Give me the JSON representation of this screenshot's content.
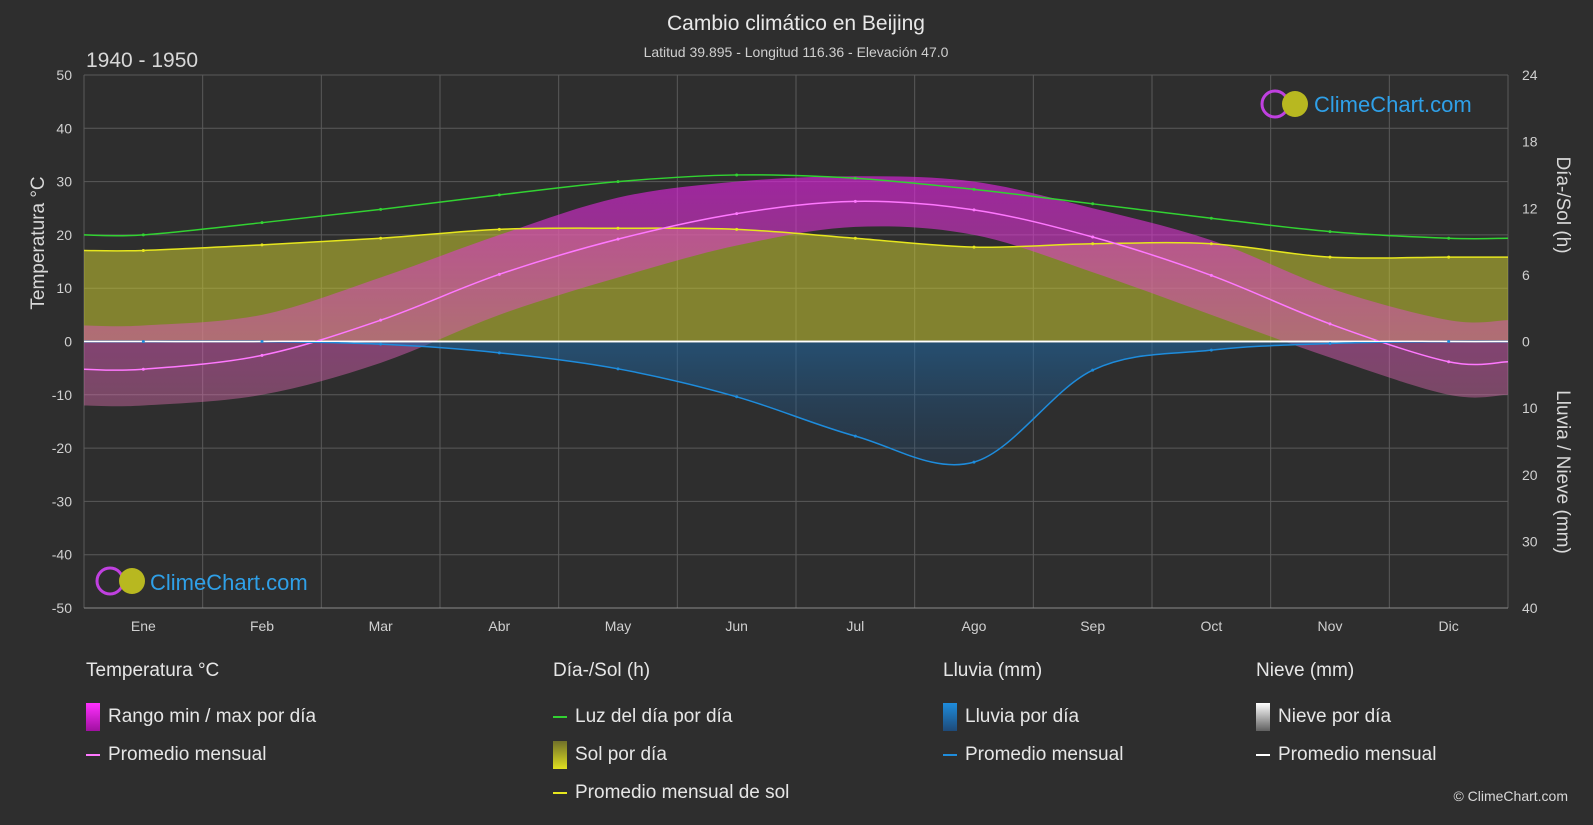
{
  "chart_data": {
    "type": "area",
    "title": "Cambio climático en Beijing",
    "subtitle": "Latitud 39.895 - Longitud 116.36 - Elevación 47.0",
    "period": "1940 - 1950",
    "y_left_label": "Temperatura °C",
    "y_right_top_label": "Día-/Sol (h)",
    "y_right_bottom_label": "Lluvia / Nieve (mm)",
    "temp_ticks": [
      50,
      40,
      30,
      20,
      10,
      0,
      -10,
      -20,
      -30,
      -40,
      -50
    ],
    "sun_ticks": [
      24,
      18,
      12,
      6,
      0
    ],
    "rain_ticks": [
      0,
      10,
      20,
      30,
      40
    ],
    "months": [
      "Ene",
      "Feb",
      "Mar",
      "Abr",
      "May",
      "Jun",
      "Jul",
      "Ago",
      "Sep",
      "Oct",
      "Nov",
      "Dic"
    ],
    "ylim_temp": [
      -50,
      50
    ],
    "ylim_sun": [
      0,
      24
    ],
    "ylim_rain": [
      0,
      40
    ],
    "series": {
      "temp_mean": [
        -5.2,
        -2.6,
        4.0,
        12.6,
        19.2,
        24.0,
        26.3,
        24.7,
        19.6,
        12.4,
        3.3,
        -3.8
      ],
      "temp_max": [
        3.0,
        5.0,
        12.0,
        20.0,
        27.0,
        30.0,
        31.0,
        30.0,
        25.0,
        19.0,
        10.0,
        4.0
      ],
      "temp_min": [
        -12.0,
        -10.0,
        -4.0,
        5.0,
        12.0,
        18.0,
        21.5,
        20.0,
        13.0,
        5.0,
        -3.0,
        -10.0
      ],
      "daylight_hours": [
        9.6,
        10.7,
        11.9,
        13.2,
        14.4,
        15.0,
        14.7,
        13.7,
        12.4,
        11.1,
        9.9,
        9.3
      ],
      "sunshine_hours": [
        8.2,
        8.7,
        9.3,
        10.1,
        10.2,
        10.1,
        9.3,
        8.5,
        8.8,
        8.8,
        7.6,
        7.6
      ],
      "rain_mm": [
        0.0,
        0.0,
        0.4,
        1.7,
        4.1,
        8.3,
        14.2,
        18.1,
        4.3,
        1.3,
        0.3,
        0.0
      ],
      "snow_mm": [
        0.0,
        0.0,
        0.0,
        0.0,
        0.0,
        0.0,
        0.0,
        0.0,
        0.0,
        0.0,
        0.0,
        0.0
      ]
    },
    "colors": {
      "background": "#2e2e2e",
      "grid": "#5a5a5a",
      "temp_range": "#d81ad8",
      "temp_mean": "#ff78ff",
      "daylight": "#32d232",
      "sun": "#c8c832",
      "sun_mean": "#e6e61e",
      "rain": "#1e8cdc",
      "rain_mean": "#1e8cdc",
      "snow_mean": "#ffffff"
    }
  },
  "watermark": {
    "brand": "ClimeChart.com"
  },
  "legend": {
    "temperature": {
      "title": "Temperatura °C",
      "range": "Rango min / max por día",
      "mean": "Promedio mensual"
    },
    "sun": {
      "title": "Día-/Sol (h)",
      "daylight": "Luz del día por día",
      "sun": "Sol por día",
      "mean": "Promedio mensual de sol"
    },
    "rain": {
      "title": "Lluvia (mm)",
      "rain": "Lluvia por día",
      "mean": "Promedio mensual"
    },
    "snow": {
      "title": "Nieve (mm)",
      "snow": "Nieve por día",
      "mean": "Promedio mensual"
    }
  },
  "copyright": "© ClimeChart.com"
}
